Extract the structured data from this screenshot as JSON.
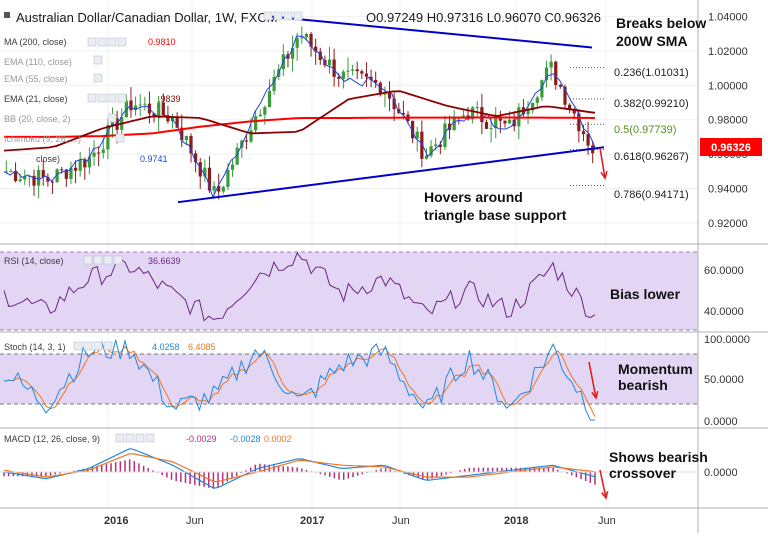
{
  "header": {
    "title": "Australian Dollar/Canadian Dollar, 1W, FXCM",
    "ohlc": "O0.97249  H0.97316  L0.96070  C0.96326"
  },
  "indicators": {
    "ma": {
      "label": "MA (200, close)",
      "value": "0.9810"
    },
    "ema110": {
      "label": "EMA (110, close)"
    },
    "ema55": {
      "label": "EMA (55, close)"
    },
    "ema21": {
      "label": "EMA (21, close)",
      "value": ".9839"
    },
    "bb": {
      "label": "BB (20, close, 2)"
    },
    "ichimoku": {
      "label": "Ichimoku (9, 26, ...)",
      "value": "0.9741"
    },
    "extra": {
      "label": "close)"
    }
  },
  "price_axis": {
    "ticks": [
      "1.04000",
      "1.02000",
      "1.00000",
      "0.98000",
      "0.96000",
      "0.94000",
      "0.92000"
    ],
    "current": "0.96326"
  },
  "fib_levels": [
    {
      "label": "0.236(1.01031)",
      "value": 1.01031
    },
    {
      "label": "0.382(0.99210)",
      "value": 0.9921
    },
    {
      "label": "0.5(0.97739)",
      "value": 0.97739
    },
    {
      "label": "0.618(0.96267)",
      "value": 0.96267
    },
    {
      "label": "0.786(0.94171)",
      "value": 0.94171
    }
  ],
  "annotations": {
    "breaks": [
      "Breaks below",
      "200W SMA"
    ],
    "hovers": [
      "Hovers around",
      "triangle base support"
    ],
    "bias": "Bias lower",
    "momentum": [
      "Momentum",
      "bearish"
    ],
    "macd_note": [
      "Shows bearish",
      "crossover"
    ]
  },
  "rsi": {
    "label": "RSI (14, close)",
    "value": "36.6639",
    "ticks": [
      "60.0000",
      "40.0000"
    ]
  },
  "stoch": {
    "label": "Stoch (14, 3, 1)",
    "k": "4.0258",
    "d": "6.4085",
    "ticks": [
      "100.0000",
      "50.0000",
      "0.0000"
    ]
  },
  "macd": {
    "label": "MACD (12, 26, close, 9)",
    "hist": "-0.0029",
    "macd": "-0.0028",
    "signal": "0.0002",
    "ticks": [
      "0.0000"
    ]
  },
  "time_axis": [
    "2016",
    "Jun",
    "2017",
    "Jun",
    "2018",
    "Jun"
  ],
  "colors": {
    "up": "#3b9b3b",
    "down": "#8b1c1c",
    "ma200": "#ff0000",
    "ema21": "#8b0000",
    "ichimoku": "#2244dd",
    "trendline": "#0000cc",
    "rsi": "#6b2580",
    "stoch_k": "#2288dd",
    "stoch_d": "#ee7722",
    "macd_line": "#2288dd",
    "signal_line": "#ee7722",
    "hist": "#b3307a",
    "current_label": "#ff0000",
    "arrow": "#e02020",
    "band_rsi": "#e3d6f4",
    "band_stoch": "#e3d6f4"
  },
  "chart_data": {
    "type": "line",
    "title": "Australian Dollar/Canadian Dollar, 1W, FXCM",
    "ylim": [
      0.91,
      1.045
    ],
    "x_labels": [
      "2016",
      "Jun",
      "2017",
      "Jun",
      "2018",
      "Jun"
    ],
    "series": [
      {
        "name": "MA (200, close)",
        "values": [
          0.97,
          0.97,
          0.9705,
          0.972,
          0.976,
          0.979,
          0.981,
          0.981,
          0.9812,
          0.9812,
          0.9813,
          0.9812,
          0.981
        ]
      },
      {
        "name": "EMA (21, close)",
        "values": [
          0.962,
          0.964,
          0.975,
          0.982,
          0.981,
          0.972,
          0.973,
          0.992,
          0.997,
          0.988,
          0.982,
          0.988,
          0.984
        ]
      }
    ],
    "price_close": [
      0.95,
      0.945,
      0.958,
      0.99,
      0.981,
      0.935,
      0.985,
      1.03,
      1.005,
      1.0,
      0.96,
      0.985,
      0.975,
      1.01,
      0.963
    ],
    "trendlines": [
      {
        "name": "upper",
        "from": 1.04,
        "to": 1.022
      },
      {
        "name": "lower",
        "from": 0.932,
        "to": 0.964
      }
    ],
    "rsi": [
      48,
      40,
      56,
      62,
      48,
      36,
      58,
      68,
      48,
      56,
      38,
      50,
      40,
      62,
      37
    ],
    "stoch_k": [
      60,
      20,
      85,
      90,
      15,
      30,
      88,
      20,
      70,
      85,
      10,
      80,
      15,
      90,
      4
    ],
    "stoch_d": [
      55,
      28,
      78,
      82,
      22,
      35,
      80,
      28,
      65,
      78,
      16,
      72,
      22,
      84,
      6
    ],
    "macd_line": [
      0.0,
      -0.004,
      0.002,
      0.014,
      0.004,
      -0.01,
      0.002,
      0.008,
      0.002,
      0.004,
      -0.005,
      -0.002,
      0.001,
      0.004,
      -0.0028
    ],
    "signal_line": [
      0.001,
      -0.003,
      0.001,
      0.011,
      0.006,
      -0.006,
      0.0,
      0.007,
      0.004,
      0.003,
      -0.003,
      -0.003,
      0.0,
      0.003,
      0.0002
    ]
  }
}
